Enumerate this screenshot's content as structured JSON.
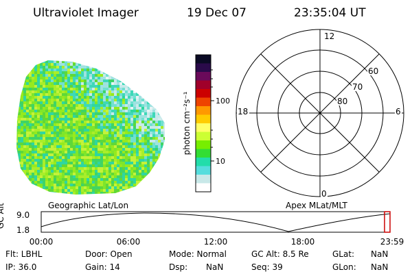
{
  "header": {
    "instrument": "Ultraviolet Imager",
    "date": "19 Dec 07",
    "time": "23:35:04 UT"
  },
  "colorbar": {
    "label": "photon cm⁻²s⁻¹",
    "ticks": [
      "100",
      "10"
    ],
    "colors": [
      "#0a0a24",
      "#2a0a4a",
      "#6a0a5a",
      "#a0002a",
      "#cc0000",
      "#ee4400",
      "#ff9900",
      "#ffcc00",
      "#ffff66",
      "#ccff33",
      "#77ee00",
      "#33dd33",
      "#22ddaa",
      "#55dddd",
      "#c8e8e8",
      "#ffffff"
    ]
  },
  "polar": {
    "hour_labels": {
      "top": "12",
      "left": "18",
      "right": "6",
      "bottom": "0"
    },
    "lat_labels": [
      "60",
      "70",
      "80"
    ]
  },
  "projection_labels": {
    "left": "Geographic Lat/Lon",
    "right": "Apex MLat/MLT"
  },
  "timeline": {
    "axis_label": "GC Alt",
    "y_ticks": [
      "9.0",
      "1.8"
    ],
    "x_ticks": [
      "00:00",
      "06:00",
      "12:00",
      "18:00",
      "23:59"
    ],
    "marker_color": "#cc0000"
  },
  "info": {
    "flt": "Flt: LBHL",
    "ip": "IP: 36.0",
    "door": "Door: Open",
    "gain": "Gain: 14",
    "mode": "Mode: Normal",
    "dsp": "Dsp:",
    "dsp_val": "NaN",
    "gcalt": "GC Alt: 8.5 Re",
    "seq": "Seq: 39",
    "glat": "GLat:",
    "glat_val": "NaN",
    "glon": "GLon:",
    "glon_val": "NaN"
  }
}
